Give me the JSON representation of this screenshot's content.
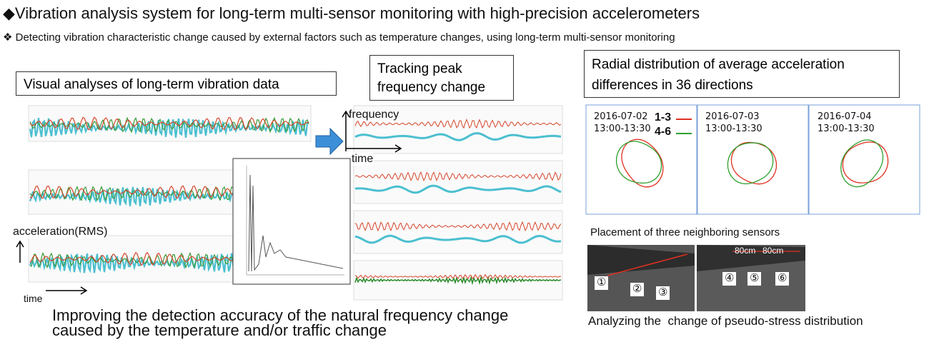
{
  "title": "◆Vibration analysis system for long-term multi-sensor monitoring with high-precision accelerometers",
  "subtitle": "❖ Detecting vibration characteristic change caused by external factors such as temperature changes, using long-term multi-sensor monitoring",
  "left_panel": {
    "label": "Visual analyses of long-term vibration data",
    "y_axis": "acceleration(RMS)",
    "x_axis": "time"
  },
  "middle_panel": {
    "label": "Tracking peak frequency change",
    "y_axis": "frequency",
    "x_axis": "time"
  },
  "footer_left": "Improving the detection accuracy of the natural frequency change caused by the temperature and/or traffic change",
  "right_panel": {
    "label": "Radial distribution of average acceleration differences in 36 directions",
    "plots": [
      {
        "date": "2016-07-02",
        "time": "13:00-13:30"
      },
      {
        "date": "2016-07-03",
        "time": "13:00-13:30"
      },
      {
        "date": "2016-07-04",
        "time": "13:00-13:30"
      }
    ],
    "legend": [
      {
        "name": "1-3",
        "color": "#e03020"
      },
      {
        "name": "4-6",
        "color": "#2ea02e"
      }
    ],
    "placement_caption": "Placement of three neighboring sensors",
    "sensor_labels": [
      "①",
      "②",
      "③",
      "④",
      "⑤",
      "⑥"
    ],
    "spacing_labels": [
      "80cm",
      "80cm"
    ],
    "analysis_caption": "Analyzing the  change of pseudo-stress distribution"
  }
}
